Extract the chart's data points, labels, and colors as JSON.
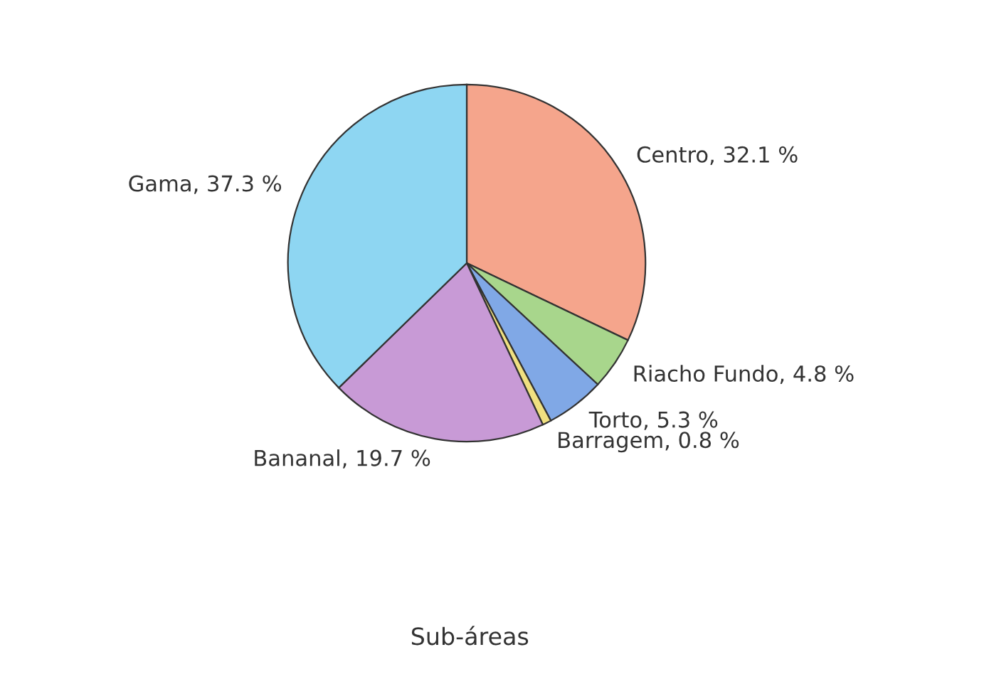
{
  "chart_data": {
    "type": "pie",
    "categories": [
      "Centro",
      "Riacho Fundo",
      "Torto",
      "Barragem",
      "Bananal",
      "Gama"
    ],
    "values": [
      32.1,
      4.8,
      5.3,
      0.8,
      19.7,
      37.3
    ],
    "value_labels": [
      "32.1 %",
      "4.8 %",
      "5.3 %",
      "0.8 %",
      "19.7 %",
      "37.3 %"
    ],
    "colors": [
      "#f5a58c",
      "#a8d68c",
      "#80a8e6",
      "#f0e080",
      "#c89ad6",
      "#8ed6f2"
    ],
    "annotations": [
      "Sub-áreas"
    ]
  }
}
